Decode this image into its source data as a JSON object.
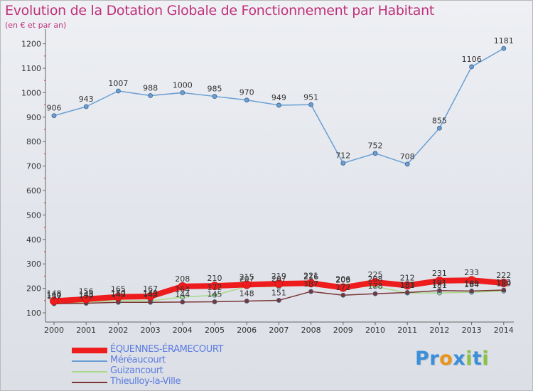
{
  "title": "Evolution de la Dotation Globale de Fonctionnement par Habitant",
  "subtitle": "(en € et par an)",
  "logo": {
    "letters": [
      "P",
      "r",
      "o",
      "x",
      "i",
      "t",
      "i"
    ],
    "colors": [
      "#3a8fd8",
      "#3a8fd8",
      "#e8951a",
      "#3a8fd8",
      "#8ac43f",
      "#3a8fd8",
      "#8ac43f"
    ]
  },
  "chart_data": {
    "type": "line",
    "title": "Evolution de la Dotation Globale de Fonctionnement par Habitant",
    "subtitle": "(en € et par an)",
    "x": [
      "2000",
      "2001",
      "2002",
      "2003",
      "2004",
      "2005",
      "2006",
      "2007",
      "2008",
      "2009",
      "2010",
      "2011",
      "2012",
      "2013",
      "2014"
    ],
    "y_ticks": [
      100,
      200,
      300,
      400,
      500,
      600,
      700,
      800,
      900,
      1000,
      1100,
      1200
    ],
    "ylim": [
      100,
      1200
    ],
    "grid": false,
    "legend_position": "bottom-left",
    "series": [
      {
        "name": "ÉQUENNES-ÉRAMECOURT",
        "color": "#ee1c1c",
        "values": [
          148,
          156,
          165,
          167,
          208,
          210,
          215,
          219,
          221,
          203,
          225,
          212,
          231,
          233,
          222
        ],
        "labels": [
          "148",
          "156",
          "165",
          "167",
          "208",
          "210",
          "215",
          "219",
          "221",
          "203",
          "225",
          "212",
          "231",
          "233",
          "222"
        ]
      },
      {
        "name": "Méréaucourt",
        "color": "#6a9fd4",
        "values": [
          906,
          943,
          1007,
          988,
          1000,
          985,
          970,
          949,
          951,
          712,
          752,
          708,
          855,
          1106,
          1181
        ],
        "labels": [
          "906",
          "943",
          "1007",
          "988",
          "1000",
          "985",
          "970",
          "949",
          "951",
          "712",
          "752",
          "708",
          "855",
          "1106",
          "1181"
        ]
      },
      {
        "name": "Guizancourt",
        "color": "#a9d98a",
        "values": [
          140,
          143,
          150,
          149,
          164,
          172,
          207,
          207,
          216,
          206,
          208,
          181,
          181,
          184,
          189
        ],
        "labels": [
          "140",
          "143",
          "150",
          "149",
          "164",
          "172",
          "207",
          "207",
          "216",
          "206",
          "208",
          "181",
          "181",
          "184",
          "189"
        ]
      },
      {
        "name": "Thieulloy-la-Ville",
        "color": "#7a3535",
        "values": [
          137,
          139,
          143,
          143,
          144,
          145,
          148,
          151,
          187,
          172,
          178,
          183,
          191,
          189,
          193
        ],
        "labels": [
          "137",
          "139",
          "143",
          "143",
          "144",
          "145",
          "148",
          "151",
          "187",
          "172",
          "178",
          "183",
          "191",
          "189",
          "193"
        ]
      }
    ]
  }
}
